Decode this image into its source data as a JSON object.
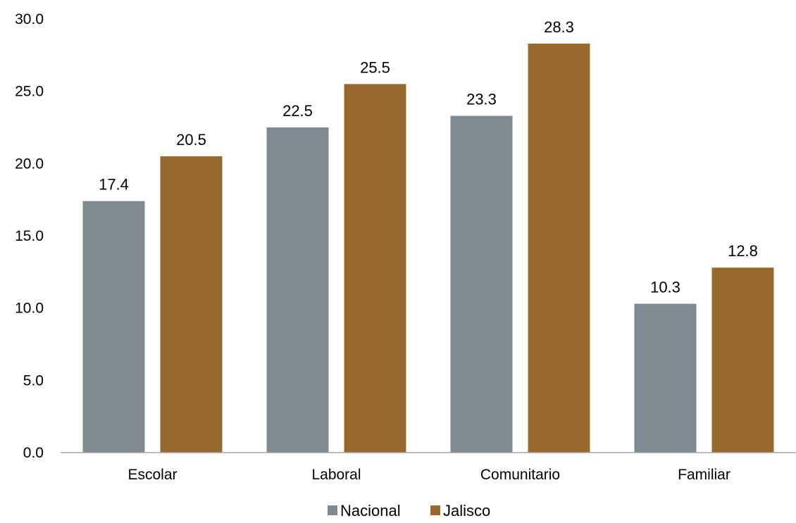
{
  "chart_data": {
    "type": "bar",
    "title": "",
    "xlabel": "",
    "ylabel": "",
    "categories": [
      "Escolar",
      "Laboral",
      "Comunitario",
      "Familiar"
    ],
    "series": [
      {
        "name": "Nacional",
        "color": "#7f8a91",
        "values": [
          17.4,
          22.5,
          23.3,
          10.3
        ]
      },
      {
        "name": "Jalisco",
        "color": "#98692d",
        "values": [
          20.5,
          25.5,
          28.3,
          12.8
        ]
      }
    ],
    "ylim": [
      0,
      30
    ],
    "yticks": [
      "0.0",
      "5.0",
      "10.0",
      "15.0",
      "20.0",
      "25.0",
      "30.0"
    ],
    "data_labels": [
      [
        "17.4",
        "22.5",
        "23.3",
        "10.3"
      ],
      [
        "20.5",
        "25.5",
        "28.3",
        "12.8"
      ]
    ],
    "grid": false,
    "legend_position": "bottom-center"
  }
}
